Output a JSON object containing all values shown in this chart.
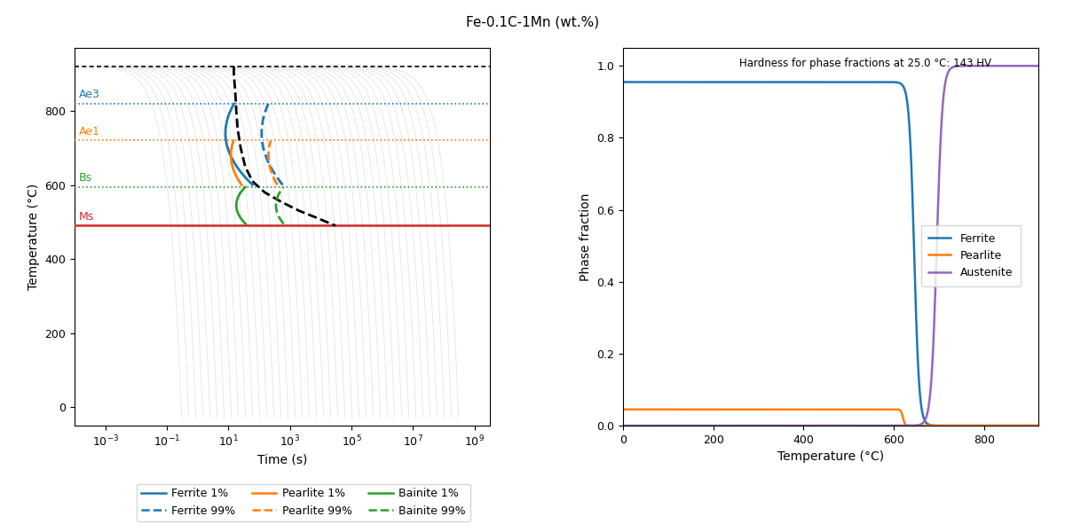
{
  "title": "Fe-0.1C-1Mn (wt.%)",
  "title_fontsize": 11,
  "left_ylabel": "Temperature (°C)",
  "left_xlabel": "Time (s)",
  "left_ylim": [
    -50,
    970
  ],
  "Ae3": 820,
  "Ae1": 720,
  "Bs": 595,
  "Ms": 490,
  "austenitize_T": 920,
  "ferrite_color": "#1f77b4",
  "pearlite_color": "#ff7f0e",
  "bainite_color": "#2ca02c",
  "ms_color": "#d62728",
  "cooling_color": "#aaaaaa",
  "right_ylabel": "Phase fraction",
  "right_xlabel": "Temperature (°C)",
  "right_xlim": [
    0,
    920
  ],
  "hardness_text": "Hardness for phase fractions at 25.0 °C: 143 HV",
  "ferrite_label": "Ferrite",
  "pearlite_label": "Pearlite",
  "austenite_label": "Austenite",
  "austenite_color": "#9467bd",
  "legend_ferrite_1": "Ferrite 1%",
  "legend_ferrite_99": "Ferrite 99%",
  "legend_pearlite_1": "Pearlite 1%",
  "legend_pearlite_99": "Pearlite 99%",
  "legend_bainite_1": "Bainite 1%",
  "legend_bainite_99": "Bainite 99%"
}
